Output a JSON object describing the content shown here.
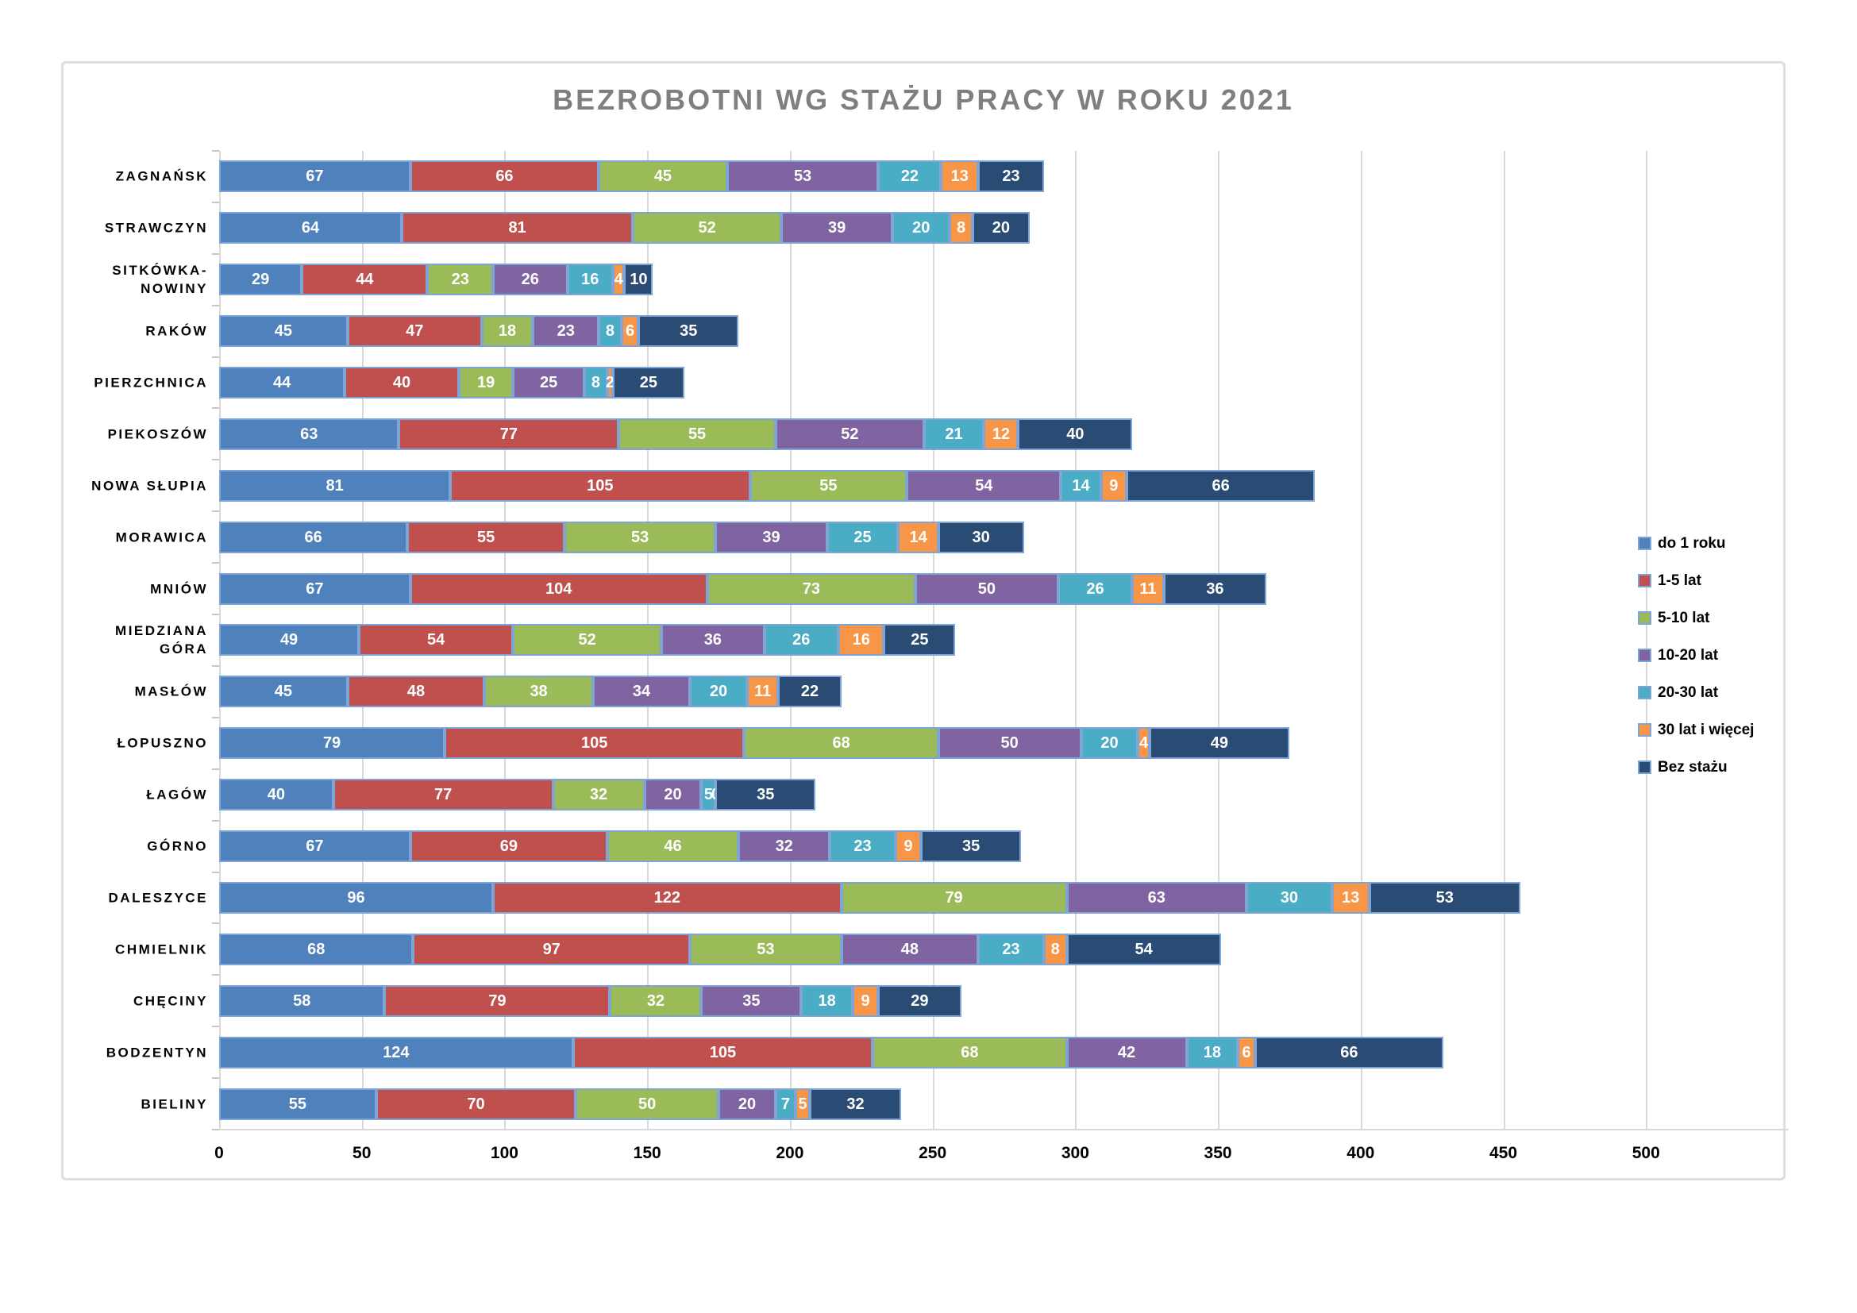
{
  "title": "BEZROBOTNI WG STAŻU PRACY W ROKU 2021",
  "chart_data": {
    "type": "bar",
    "orientation": "horizontal",
    "stacked": true,
    "title": "BEZROBOTNI WG STAŻU PRACY W ROKU 2021",
    "categories": [
      "ZAGNAŃSK",
      "STRAWCZYN",
      "SITKÓWKA-NOWINY",
      "RAKÓW",
      "PIERZCHNICA",
      "PIEKOSZÓW",
      "NOWA SŁUPIA",
      "MORAWICA",
      "MNIÓW",
      "MIEDZIANA GÓRA",
      "MASŁÓW",
      "ŁOPUSZNO",
      "ŁAGÓW",
      "GÓRNO",
      "DALESZYCE",
      "CHMIELNIK",
      "CHĘCINY",
      "BODZENTYN",
      "BIELINY"
    ],
    "category_display_lines": [
      [
        "ZAGNAŃSK"
      ],
      [
        "STRAWCZYN"
      ],
      [
        "SITKÓWKA-",
        "NOWINY"
      ],
      [
        "RAKÓW"
      ],
      [
        "PIERZCHNICA"
      ],
      [
        "PIEKOSZÓW"
      ],
      [
        "NOWA SŁUPIA"
      ],
      [
        "MORAWICA"
      ],
      [
        "MNIÓW"
      ],
      [
        "MIEDZIANA",
        "GÓRA"
      ],
      [
        "MASŁÓW"
      ],
      [
        "ŁOPUSZNO"
      ],
      [
        "ŁAGÓW"
      ],
      [
        "GÓRNO"
      ],
      [
        "DALESZYCE"
      ],
      [
        "CHMIELNIK"
      ],
      [
        "CHĘCINY"
      ],
      [
        "BODZENTYN"
      ],
      [
        "BIELINY"
      ]
    ],
    "series": [
      {
        "name": "do 1 roku",
        "color": "#4F81BD",
        "values": [
          67,
          64,
          29,
          45,
          44,
          63,
          81,
          66,
          67,
          49,
          45,
          79,
          40,
          67,
          96,
          68,
          58,
          124,
          55
        ]
      },
      {
        "name": "1-5 lat",
        "color": "#C0504D",
        "values": [
          66,
          81,
          44,
          47,
          40,
          77,
          105,
          55,
          104,
          54,
          48,
          105,
          77,
          69,
          122,
          97,
          79,
          105,
          70
        ]
      },
      {
        "name": "5-10 lat",
        "color": "#9BBB59",
        "values": [
          45,
          52,
          23,
          18,
          19,
          55,
          55,
          53,
          73,
          52,
          38,
          68,
          32,
          46,
          79,
          53,
          32,
          68,
          50
        ]
      },
      {
        "name": "10-20 lat",
        "color": "#8064A2",
        "values": [
          53,
          39,
          26,
          23,
          25,
          52,
          54,
          39,
          50,
          36,
          34,
          50,
          20,
          32,
          63,
          48,
          35,
          42,
          20
        ]
      },
      {
        "name": "20-30 lat",
        "color": "#4BACC6",
        "values": [
          22,
          20,
          16,
          8,
          8,
          21,
          14,
          25,
          26,
          26,
          20,
          20,
          5,
          23,
          30,
          23,
          18,
          18,
          7
        ]
      },
      {
        "name": "30 lat i więcej",
        "color": "#F79646",
        "values": [
          13,
          8,
          4,
          6,
          2,
          12,
          9,
          14,
          11,
          16,
          11,
          4,
          0,
          9,
          13,
          8,
          9,
          6,
          5
        ]
      },
      {
        "name": "Bez stażu",
        "color": "#2A4B73",
        "values": [
          23,
          20,
          10,
          35,
          25,
          40,
          66,
          30,
          36,
          25,
          22,
          49,
          35,
          35,
          53,
          54,
          29,
          66,
          32
        ]
      }
    ],
    "x_ticks": [
      0,
      50,
      100,
      150,
      200,
      250,
      300,
      350,
      400,
      450,
      500
    ],
    "xlim": [
      0,
      550
    ],
    "grid": true,
    "legend_position": "right",
    "value_labels": "inside-white"
  },
  "style": {
    "segment_border": "#7fa4d6",
    "gridline_color": "#d9d9d9",
    "frame_border": "#dedede",
    "title_color": "#7f7f7f",
    "value_label_color": "#ffffff"
  }
}
